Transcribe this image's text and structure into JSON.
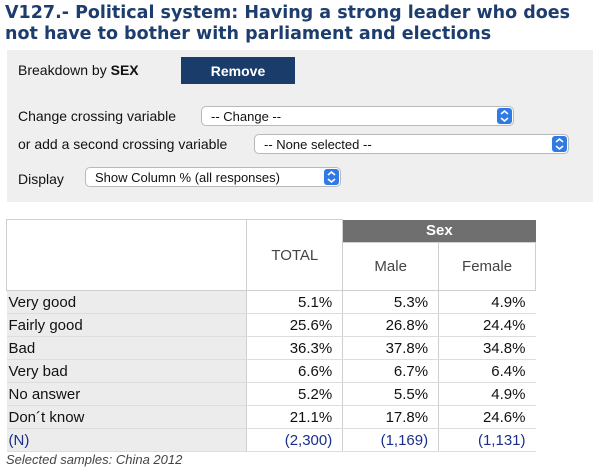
{
  "title": "V127.- Political system: Having a strong leader who does not have to bother with parliament and elections",
  "controls": {
    "breakdown_label": "Breakdown by",
    "breakdown_var": "SEX",
    "remove_label": "Remove",
    "crossing_label": "Change crossing variable",
    "crossing_value": "-- Change --",
    "second_label": "or add a second crossing variable",
    "second_value": "-- None selected --",
    "display_label": "Display",
    "display_value": "Show Column % (all responses)"
  },
  "table": {
    "total_header": "TOTAL",
    "group_header": "Sex",
    "sub_headers": [
      "Male",
      "Female"
    ],
    "rows": [
      {
        "label": "Very good",
        "total": "5.1%",
        "male": "5.3%",
        "female": "4.9%"
      },
      {
        "label": "Fairly good",
        "total": "25.6%",
        "male": "26.8%",
        "female": "24.4%"
      },
      {
        "label": "Bad",
        "total": "36.3%",
        "male": "37.8%",
        "female": "34.8%"
      },
      {
        "label": "Very bad",
        "total": "6.6%",
        "male": "6.7%",
        "female": "6.4%"
      },
      {
        "label": "No answer",
        "total": "5.2%",
        "male": "5.5%",
        "female": "4.9%"
      },
      {
        "label": "Don´t know",
        "total": "21.1%",
        "male": "17.8%",
        "female": "24.6%"
      }
    ],
    "n_row": {
      "label": "(N)",
      "total": "(2,300)",
      "male": "(1,169)",
      "female": "(1,131)"
    }
  },
  "footer_note": "Selected samples: China 2012",
  "colors": {
    "title": "#1d3d6e",
    "button": "#1a3c6a",
    "select_arrow": "#2f7ae5",
    "group_header": "#6f6f6f",
    "n_row": "#1a2f8a"
  }
}
